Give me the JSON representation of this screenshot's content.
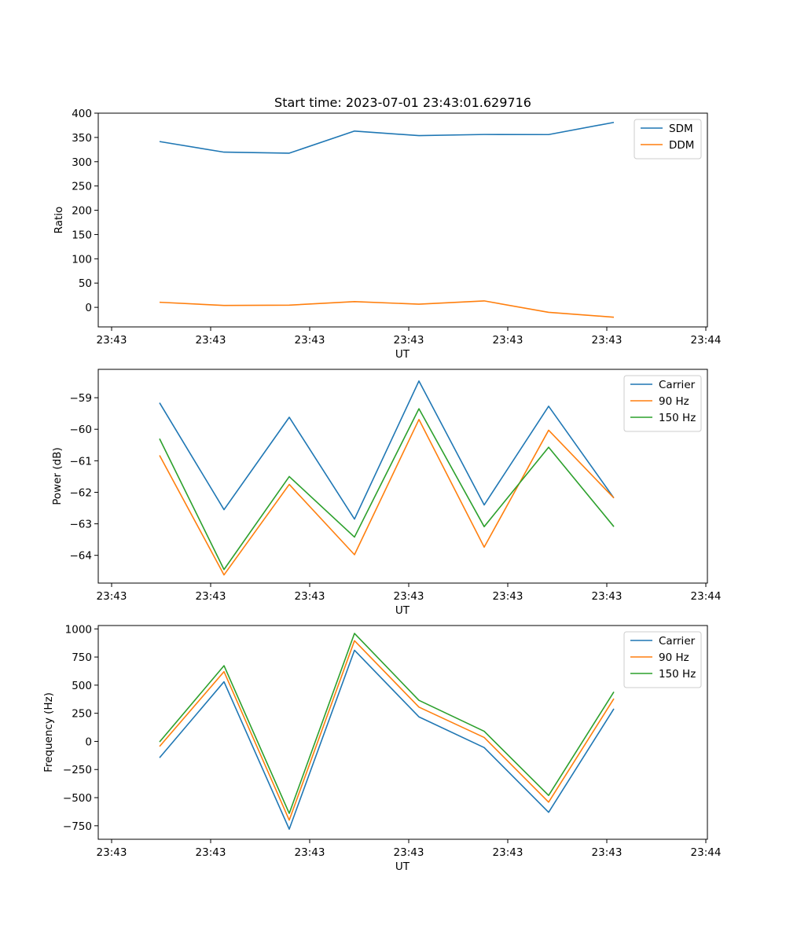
{
  "chart_data": [
    {
      "type": "line",
      "title": "Start time: 2023-07-01 23:43:01.629716",
      "xlabel": "UT",
      "ylabel": "Ratio",
      "x_tick_labels": [
        "23:43",
        "23:43",
        "23:43",
        "23:43",
        "23:43",
        "23:43",
        "23:44"
      ],
      "y_ticks": [
        0,
        50,
        100,
        150,
        200,
        250,
        300,
        350,
        400
      ],
      "ylim": [
        -40.3,
        400
      ],
      "legend_position": "top-right",
      "series": [
        {
          "name": "SDM",
          "color": "#1f77b4",
          "values": [
            341.5,
            319.7,
            317.6,
            363.1,
            353.7,
            356.1,
            355.9,
            381.0
          ]
        },
        {
          "name": "DDM",
          "color": "#ff7f0e",
          "values": [
            10.5,
            3.9,
            4.5,
            11.8,
            6.5,
            13.3,
            -10.3,
            -20.3
          ]
        }
      ]
    },
    {
      "type": "line",
      "title": "",
      "xlabel": "UT",
      "ylabel": "Power (dB)",
      "x_tick_labels": [
        "23:43",
        "23:43",
        "23:43",
        "23:43",
        "23:43",
        "23:43",
        "23:44"
      ],
      "y_ticks": [
        -59,
        -60,
        -61,
        -62,
        -63,
        -64
      ],
      "ylim": [
        -64.88,
        -58.1
      ],
      "legend_position": "top-right",
      "series": [
        {
          "name": "Carrier",
          "color": "#1f77b4",
          "values": [
            -59.16,
            -62.55,
            -59.62,
            -62.85,
            -58.47,
            -62.4,
            -59.27,
            -62.18
          ]
        },
        {
          "name": "90 Hz",
          "color": "#ff7f0e",
          "values": [
            -60.83,
            -64.62,
            -61.75,
            -63.98,
            -59.69,
            -63.74,
            -60.03,
            -62.18
          ]
        },
        {
          "name": "150 Hz",
          "color": "#2ca02c",
          "values": [
            -60.3,
            -64.45,
            -61.5,
            -63.42,
            -59.35,
            -63.09,
            -60.57,
            -63.09
          ]
        }
      ]
    },
    {
      "type": "line",
      "title": "",
      "xlabel": "UT",
      "ylabel": "Frequency (Hz)",
      "x_tick_labels": [
        "23:43",
        "23:43",
        "23:43",
        "23:43",
        "23:43",
        "23:43",
        "23:44"
      ],
      "y_ticks": [
        -750,
        -500,
        -250,
        0,
        250,
        500,
        750,
        1000
      ],
      "ylim": [
        -870,
        1030
      ],
      "legend_position": "top-right",
      "series": [
        {
          "name": "Carrier",
          "color": "#1f77b4",
          "values": [
            -145,
            530,
            -780,
            810,
            218,
            -55,
            -630,
            290
          ]
        },
        {
          "name": "90 Hz",
          "color": "#ff7f0e",
          "values": [
            -45,
            620,
            -700,
            895,
            305,
            35,
            -540,
            380
          ]
        },
        {
          "name": "150 Hz",
          "color": "#2ca02c",
          "values": [
            -5,
            673,
            -640,
            960,
            365,
            90,
            -480,
            440
          ]
        }
      ]
    }
  ]
}
